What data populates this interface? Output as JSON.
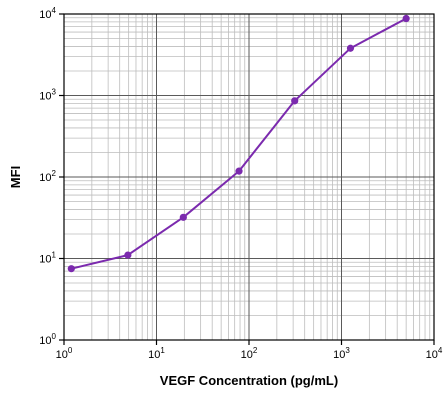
{
  "chart_data": {
    "type": "line",
    "xlabel": "VEGF Concentration (pg/mL)",
    "ylabel": "MFI",
    "x_scale": "log",
    "y_scale": "log",
    "xlim": [
      1,
      10000
    ],
    "ylim": [
      1,
      10000
    ],
    "grid": true,
    "x_ticks": [
      {
        "base": "10",
        "exp": "0"
      },
      {
        "base": "10",
        "exp": "1"
      },
      {
        "base": "10",
        "exp": "2"
      },
      {
        "base": "10",
        "exp": "3"
      },
      {
        "base": "10",
        "exp": "4"
      }
    ],
    "y_ticks": [
      {
        "base": "10",
        "exp": "0"
      },
      {
        "base": "10",
        "exp": "1"
      },
      {
        "base": "10",
        "exp": "2"
      },
      {
        "base": "10",
        "exp": "3"
      },
      {
        "base": "10",
        "exp": "4"
      }
    ],
    "series": [
      {
        "color": "#7B2AAE",
        "points": [
          {
            "x": 1.2,
            "y": 7.5
          },
          {
            "x": 4.9,
            "y": 11
          },
          {
            "x": 19.5,
            "y": 32
          },
          {
            "x": 78,
            "y": 118
          },
          {
            "x": 312,
            "y": 860
          },
          {
            "x": 1250,
            "y": 3800
          },
          {
            "x": 5000,
            "y": 8800
          }
        ]
      }
    ]
  }
}
